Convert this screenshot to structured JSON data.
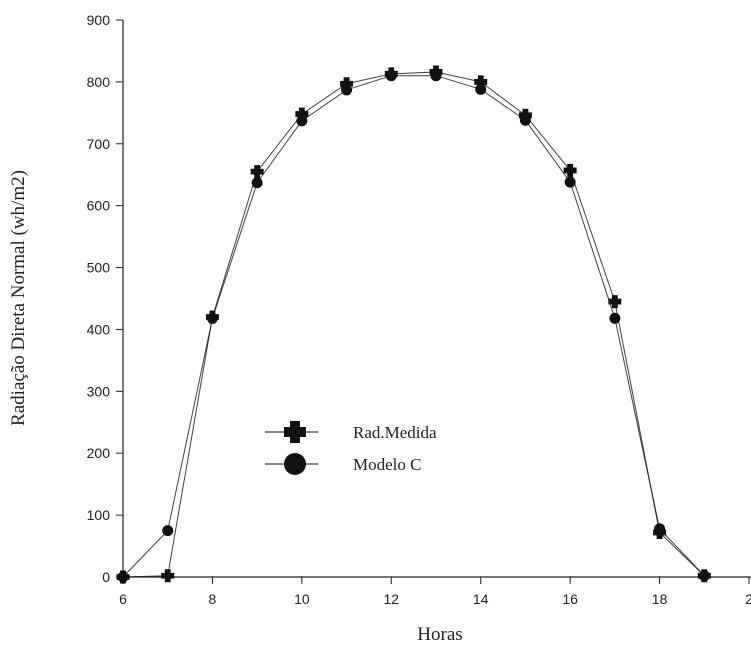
{
  "chart_data": {
    "type": "line",
    "x_label": "Horas",
    "y_label": "Radiação Direta Normal (wh/m2)",
    "x": [
      6,
      7,
      8,
      9,
      10,
      11,
      12,
      13,
      14,
      15,
      16,
      17,
      18,
      19
    ],
    "series": [
      {
        "name": "Rad.Medida",
        "color": "#111111",
        "marker": "cross",
        "values": [
          0,
          2,
          420,
          655,
          748,
          797,
          813,
          816,
          800,
          746,
          657,
          445,
          72,
          2
        ]
      },
      {
        "name": "Modelo C",
        "color": "#111111",
        "marker": "circle",
        "values": [
          0,
          75,
          418,
          637,
          737,
          787,
          810,
          810,
          788,
          738,
          638,
          418,
          78,
          2
        ]
      }
    ],
    "xlim": [
      6,
      20
    ],
    "xticks": [
      6,
      8,
      10,
      12,
      14,
      16,
      18,
      {
        "value": 20,
        "label": "2"
      }
    ],
    "ylim": [
      0,
      900
    ],
    "yticks": [
      0,
      100,
      200,
      300,
      400,
      500,
      600,
      700,
      800,
      900
    ],
    "grid": false
  }
}
